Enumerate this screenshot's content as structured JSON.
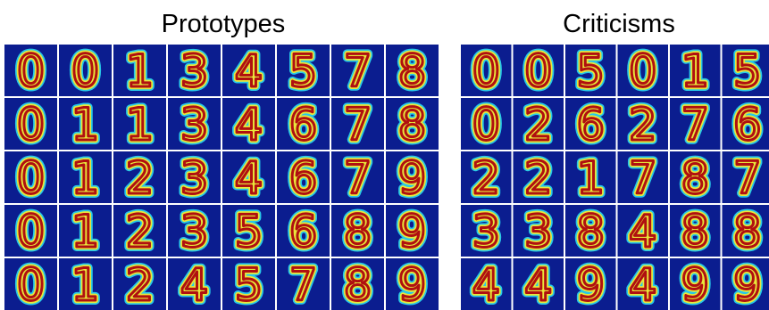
{
  "titles": {
    "prototypes": "Prototypes",
    "criticisms": "Criticisms"
  },
  "prototypes": {
    "rows": [
      [
        "0",
        "0",
        "1",
        "3",
        "4",
        "5",
        "7",
        "8"
      ],
      [
        "0",
        "1",
        "1",
        "3",
        "4",
        "6",
        "7",
        "8"
      ],
      [
        "0",
        "1",
        "2",
        "3",
        "4",
        "6",
        "7",
        "9"
      ],
      [
        "0",
        "1",
        "2",
        "3",
        "5",
        "6",
        "8",
        "9"
      ],
      [
        "0",
        "1",
        "2",
        "4",
        "5",
        "7",
        "8",
        "9"
      ]
    ]
  },
  "criticisms": {
    "rows": [
      [
        "0",
        "0",
        "5",
        "0",
        "1",
        "5"
      ],
      [
        "0",
        "2",
        "6",
        "2",
        "7",
        "6"
      ],
      [
        "2",
        "2",
        "1",
        "7",
        "8",
        "7"
      ],
      [
        "3",
        "3",
        "8",
        "4",
        "8",
        "8"
      ],
      [
        "4",
        "4",
        "9",
        "4",
        "9",
        "9"
      ]
    ]
  }
}
